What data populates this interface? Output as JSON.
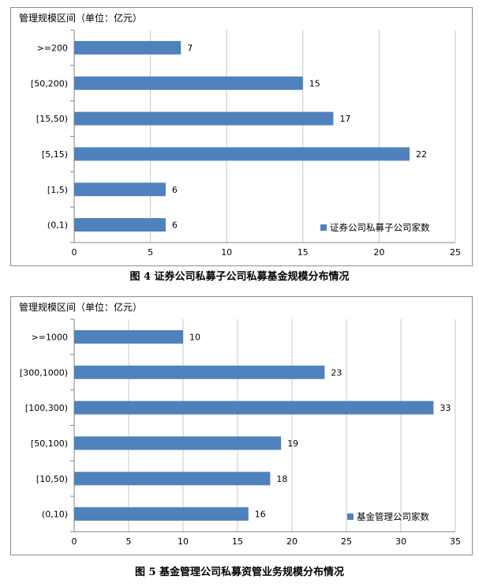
{
  "figures": [
    {
      "y_axis_title": "管理规模区间（单位：亿元）",
      "caption": "图 4   证券公司私募子公司私募基金规模分布情况"
    },
    {
      "y_axis_title": "管理规模区间（单位：亿元）",
      "caption": "图 5   基金管理公司私募资管业务规模分布情况"
    }
  ],
  "chart_data": [
    {
      "type": "bar",
      "orientation": "horizontal",
      "title": "管理规模区间（单位：亿元）",
      "categories": [
        ">=200",
        "[50,200)",
        "[15,50)",
        "[5,15)",
        "[1,5)",
        "(0,1)"
      ],
      "series": [
        {
          "name": "证券公司私募子公司家数",
          "values": [
            7,
            15,
            17,
            22,
            6,
            6
          ],
          "color": "#4f81bd"
        }
      ],
      "xlim": [
        0,
        25
      ],
      "xticks": [
        0,
        5,
        10,
        15,
        20,
        25
      ],
      "grid": true,
      "legend": "bottom-right"
    },
    {
      "type": "bar",
      "orientation": "horizontal",
      "title": "管理规模区间（单位：亿元）",
      "categories": [
        ">=1000",
        "[300,1000)",
        "[100,300)",
        "[50,100)",
        "[10,50)",
        "(0,10)"
      ],
      "series": [
        {
          "name": "基金管理公司家数",
          "values": [
            10,
            23,
            33,
            19,
            18,
            16
          ],
          "color": "#4f81bd"
        }
      ],
      "xlim": [
        0,
        35
      ],
      "xticks": [
        0,
        5,
        10,
        15,
        20,
        25,
        30,
        35
      ],
      "grid": true,
      "legend": "bottom-right"
    }
  ]
}
